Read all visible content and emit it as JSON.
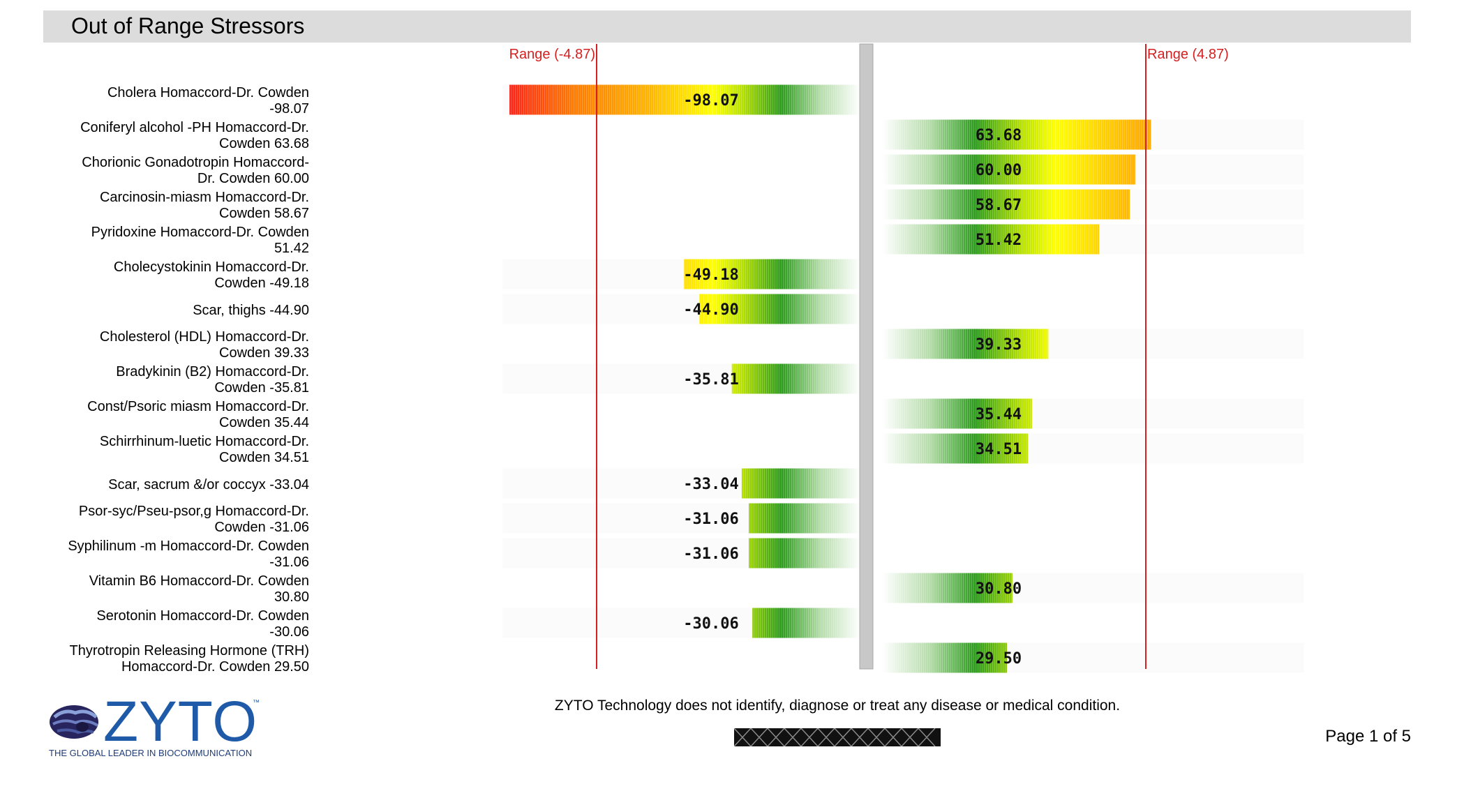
{
  "page": {
    "title": "Out of Range Stressors",
    "disclaimer": "ZYTO Technology does not identify, diagnose or treat any disease or medical condition.",
    "page_indicator": "Page 1 of 5"
  },
  "logo": {
    "brand": "ZYTO",
    "trademark": "™",
    "tagline": "THE GLOBAL LEADER IN BIOCOMMUNICATION"
  },
  "chart_data": {
    "type": "bar",
    "orientation": "horizontal-diverging",
    "title": "Out of Range Stressors",
    "range_low": -4.87,
    "range_high": 4.87,
    "range_low_label": "Range (-4.87)",
    "range_high_label": "Range (4.87)",
    "colors": {
      "range_line": "#d42020",
      "range_label": "#d42020",
      "axis_bar": "#c8c8c8",
      "green": "#2a9a1a",
      "yellow": "#ffff00",
      "orange": "#ff9800",
      "red": "#ff1a1a"
    },
    "items": [
      {
        "label_lines": [
          "Cholera Homaccord-Dr. Cowden",
          "-98.07"
        ],
        "value": -98.07,
        "value_label": "-98.07"
      },
      {
        "label_lines": [
          "Coniferyl alcohol -PH Homaccord-Dr.",
          "Cowden 63.68"
        ],
        "value": 63.68,
        "value_label": "63.68"
      },
      {
        "label_lines": [
          "Chorionic Gonadotropin Homaccord-",
          "Dr. Cowden 60.00"
        ],
        "value": 60.0,
        "value_label": "60.00"
      },
      {
        "label_lines": [
          "Carcinosin-miasm Homaccord-Dr.",
          "Cowden 58.67"
        ],
        "value": 58.67,
        "value_label": "58.67"
      },
      {
        "label_lines": [
          "Pyridoxine Homaccord-Dr. Cowden",
          "51.42"
        ],
        "value": 51.42,
        "value_label": "51.42"
      },
      {
        "label_lines": [
          "Cholecystokinin Homaccord-Dr.",
          "Cowden -49.18"
        ],
        "value": -49.18,
        "value_label": "-49.18"
      },
      {
        "label_lines": [
          "Scar, thighs -44.90"
        ],
        "value": -44.9,
        "value_label": "-44.90"
      },
      {
        "label_lines": [
          "Cholesterol (HDL) Homaccord-Dr.",
          "Cowden 39.33"
        ],
        "value": 39.33,
        "value_label": "39.33"
      },
      {
        "label_lines": [
          "Bradykinin (B2) Homaccord-Dr.",
          "Cowden -35.81"
        ],
        "value": -35.81,
        "value_label": "-35.81"
      },
      {
        "label_lines": [
          "Const/Psoric miasm Homaccord-Dr.",
          "Cowden 35.44"
        ],
        "value": 35.44,
        "value_label": "35.44"
      },
      {
        "label_lines": [
          "Schirrhinum-luetic Homaccord-Dr.",
          "Cowden 34.51"
        ],
        "value": 34.51,
        "value_label": "34.51"
      },
      {
        "label_lines": [
          "Scar, sacrum &/or coccyx -33.04"
        ],
        "value": -33.04,
        "value_label": "-33.04"
      },
      {
        "label_lines": [
          "Psor-syc/Pseu-psor,g Homaccord-Dr.",
          "Cowden -31.06"
        ],
        "value": -31.06,
        "value_label": "-31.06"
      },
      {
        "label_lines": [
          "Syphilinum -m Homaccord-Dr. Cowden",
          "-31.06"
        ],
        "value": -31.06,
        "value_label": "-31.06"
      },
      {
        "label_lines": [
          "Vitamin B6 Homaccord-Dr. Cowden",
          "30.80"
        ],
        "value": 30.8,
        "value_label": "30.80"
      },
      {
        "label_lines": [
          "Serotonin Homaccord-Dr. Cowden",
          "-30.06"
        ],
        "value": -30.06,
        "value_label": "-30.06"
      },
      {
        "label_lines": [
          "Thyrotropin Releasing Hormone (TRH)",
          "Homaccord-Dr. Cowden 29.50"
        ],
        "value": 29.5,
        "value_label": "29.50"
      }
    ]
  }
}
